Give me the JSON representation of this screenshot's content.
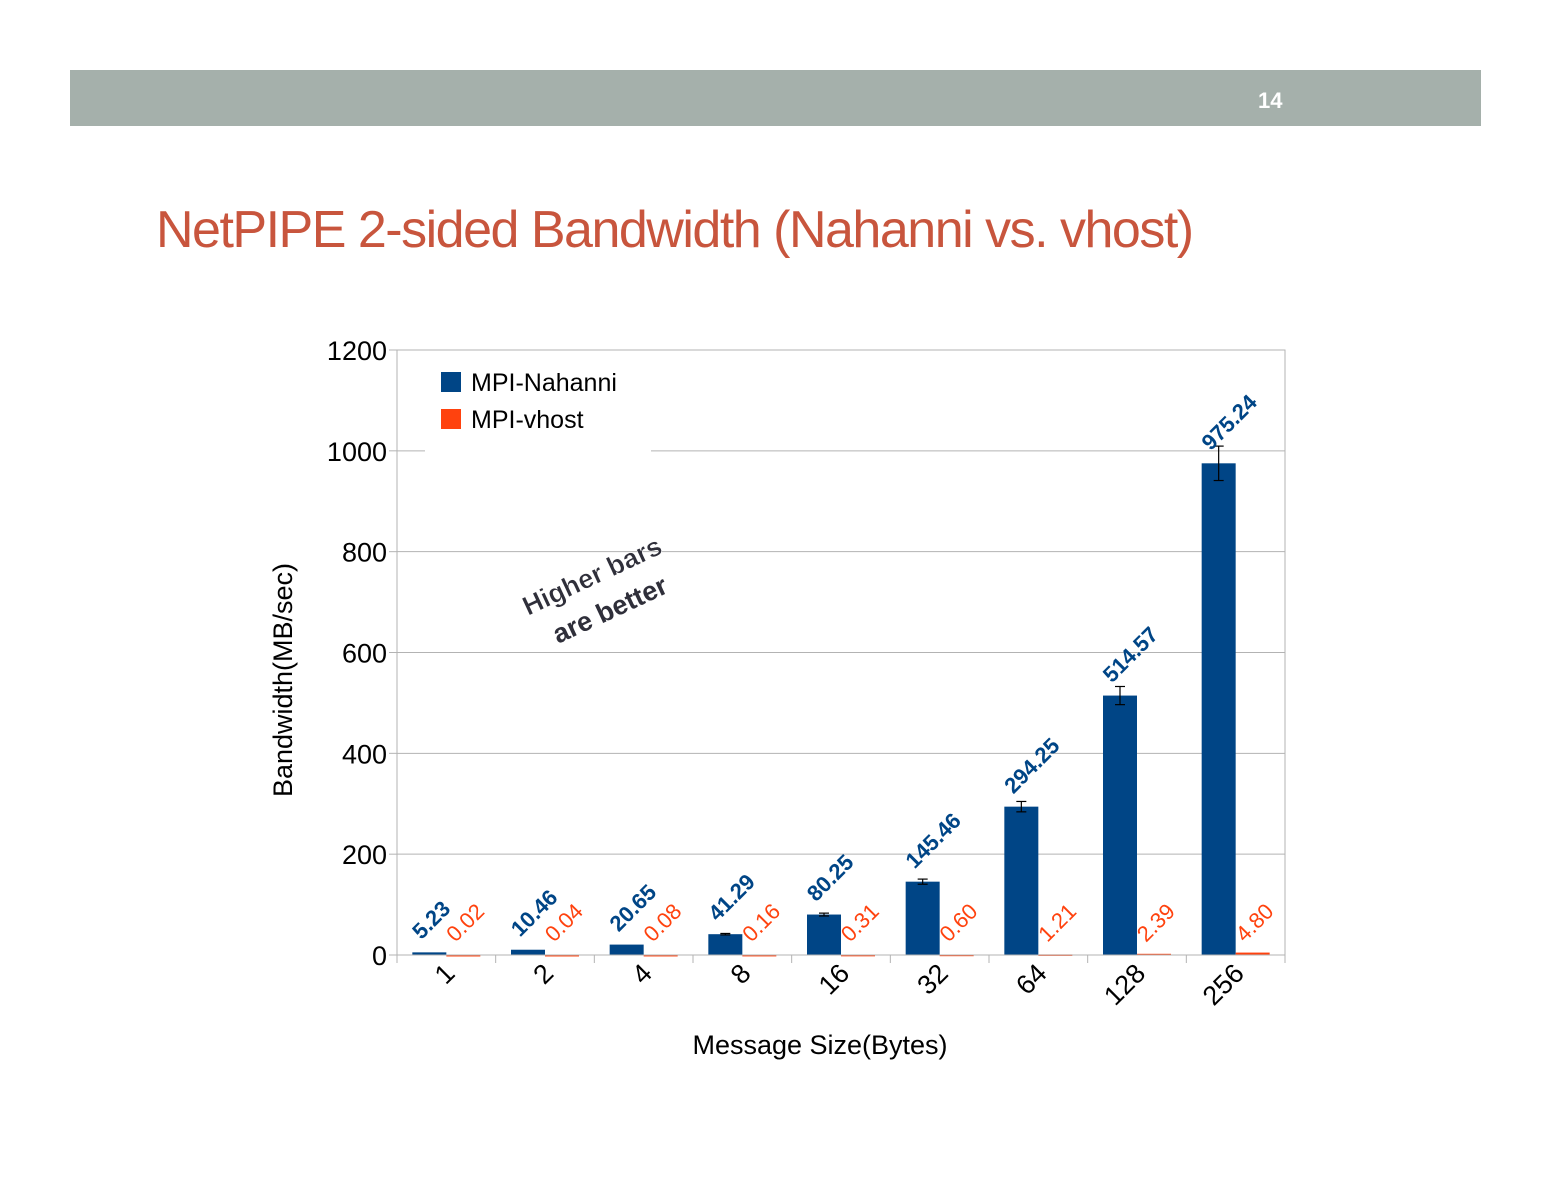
{
  "slide": {
    "number": "14",
    "title": "NetPIPE 2-sided Bandwidth (Nahanni vs. vhost)",
    "annotation_line1": "Higher bars",
    "annotation_line2": "are better"
  },
  "colors": {
    "topbar": "#a5b0ab",
    "title": "#c8553d",
    "nahanni": "#004586",
    "vhost": "#ff420e"
  },
  "chart_data": {
    "type": "bar",
    "title": "",
    "xlabel": "Message Size(Bytes)",
    "ylabel": "Bandwidth(MB/sec)",
    "ylim": [
      0,
      1200
    ],
    "yticks": [
      "0",
      "200",
      "400",
      "600",
      "800",
      "1000",
      "1200"
    ],
    "grid": true,
    "legend": "top-left",
    "categories": [
      "1",
      "2",
      "4",
      "8",
      "16",
      "32",
      "64",
      "128",
      "256"
    ],
    "series": [
      {
        "name": "MPI-Nahanni",
        "color": "#004586",
        "values": [
          5.23,
          10.46,
          20.65,
          41.29,
          80.25,
          145.46,
          294.25,
          514.57,
          975.24
        ],
        "labels": [
          "5.23",
          "10.46",
          "20.65",
          "41.29",
          "80.25",
          "145.46",
          "294.25",
          "514.57",
          "975.24"
        ]
      },
      {
        "name": "MPI-vhost",
        "color": "#ff420e",
        "values": [
          0.02,
          0.04,
          0.08,
          0.16,
          0.31,
          0.6,
          1.21,
          2.39,
          4.8
        ],
        "labels": [
          "0.02",
          "0.04",
          "0.08",
          "0.16",
          "0.31",
          "0.60",
          "1.21",
          "2.39",
          "4.80"
        ]
      }
    ]
  }
}
